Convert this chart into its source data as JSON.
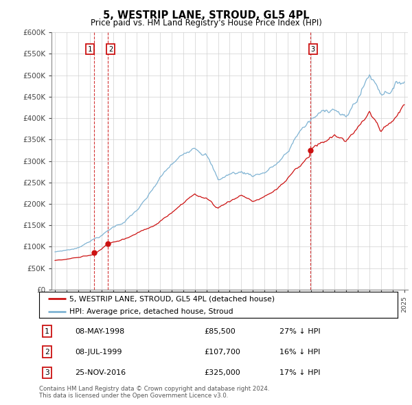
{
  "title": "5, WESTRIP LANE, STROUD, GL5 4PL",
  "subtitle": "Price paid vs. HM Land Registry's House Price Index (HPI)",
  "hpi_label": "HPI: Average price, detached house, Stroud",
  "property_label": "5, WESTRIP LANE, STROUD, GL5 4PL (detached house)",
  "hpi_color": "#7fb3d3",
  "property_color": "#cc1111",
  "dashed_color": "#cc1111",
  "transactions": [
    {
      "label": "1",
      "date": "08-MAY-1998",
      "price": 85500,
      "hpi_diff": "27% ↓ HPI",
      "year": 1998.37
    },
    {
      "label": "2",
      "date": "08-JUL-1999",
      "price": 107700,
      "hpi_diff": "16% ↓ HPI",
      "year": 1999.54
    },
    {
      "label": "3",
      "date": "25-NOV-2016",
      "price": 325000,
      "hpi_diff": "17% ↓ HPI",
      "year": 2016.9
    }
  ],
  "footer": "Contains HM Land Registry data © Crown copyright and database right 2024.\nThis data is licensed under the Open Government Licence v3.0.",
  "ylim": [
    0,
    600000
  ],
  "yticks": [
    0,
    50000,
    100000,
    150000,
    200000,
    250000,
    300000,
    350000,
    400000,
    450000,
    500000,
    550000,
    600000
  ],
  "x_start_year": 1995,
  "x_end_year": 2025,
  "hpi_breakpoints": [
    1995,
    1996,
    1997,
    1998,
    1999,
    2000,
    2001,
    2002,
    2003,
    2004,
    2005,
    2006,
    2007,
    2008,
    2009,
    2010,
    2011,
    2012,
    2013,
    2014,
    2015,
    2016,
    2017,
    2018,
    2019,
    2020,
    2021,
    2022,
    2023,
    2024,
    2025
  ],
  "hpi_values": [
    88000,
    93000,
    98000,
    117000,
    130000,
    150000,
    165000,
    190000,
    220000,
    260000,
    290000,
    310000,
    340000,
    330000,
    265000,
    280000,
    285000,
    280000,
    290000,
    310000,
    335000,
    390000,
    415000,
    430000,
    450000,
    420000,
    470000,
    530000,
    490000,
    510000,
    530000
  ],
  "red_breakpoints": [
    1995,
    1996,
    1997,
    1998.37,
    1999.54,
    2001,
    2003,
    2005,
    2007,
    2008,
    2009,
    2010,
    2011,
    2012,
    2013,
    2014,
    2015,
    2016.9,
    2017,
    2018,
    2019,
    2020,
    2021,
    2022,
    2023,
    2024,
    2025
  ],
  "red_values": [
    68000,
    72000,
    76000,
    85500,
    107700,
    120000,
    145000,
    175000,
    225000,
    215000,
    195000,
    215000,
    230000,
    215000,
    225000,
    240000,
    270000,
    325000,
    340000,
    355000,
    370000,
    355000,
    390000,
    430000,
    390000,
    415000,
    450000
  ]
}
